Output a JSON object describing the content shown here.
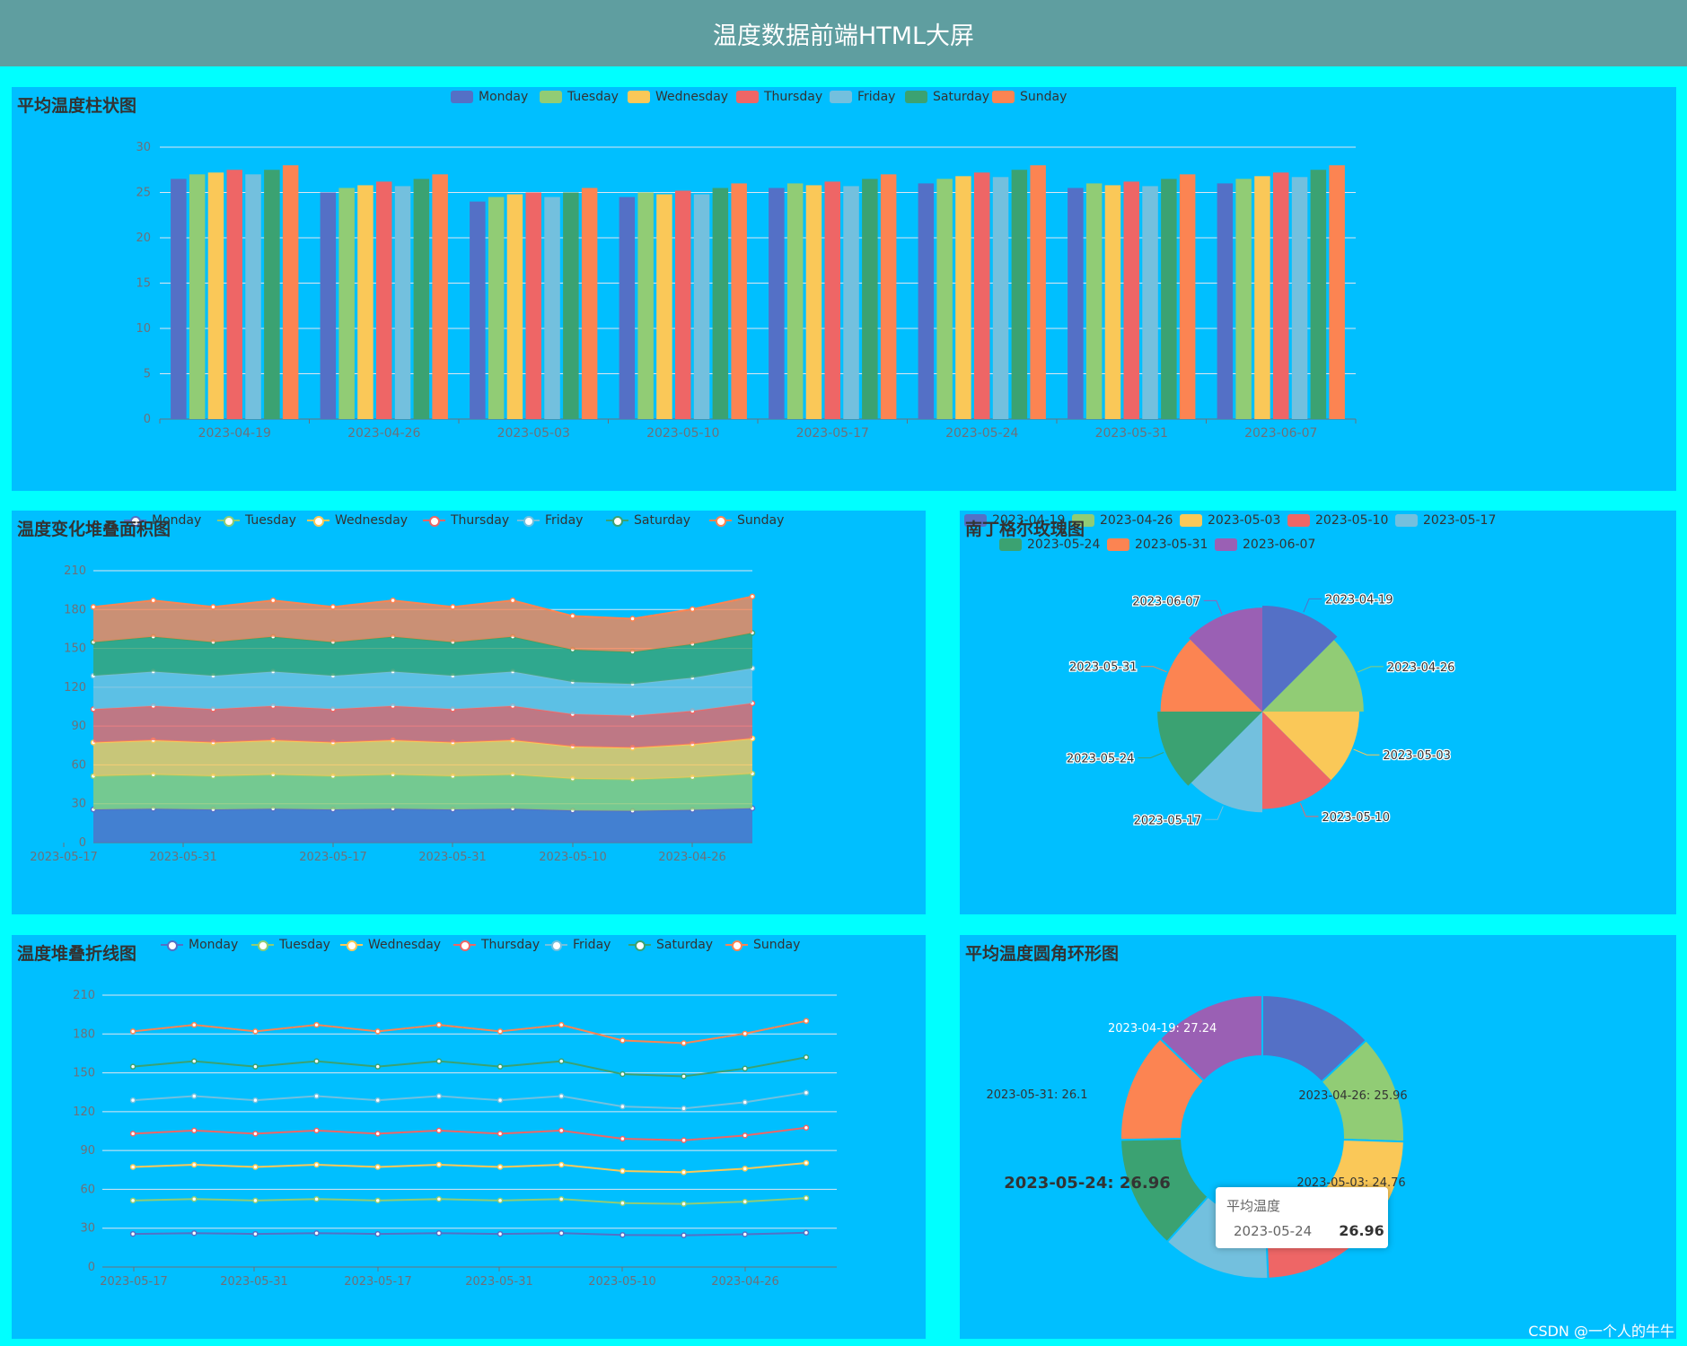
{
  "header": {
    "title": "温度数据前端HTML大屏"
  },
  "colors": [
    "#5470c6",
    "#91cc75",
    "#fac858",
    "#ee6666",
    "#73c0de",
    "#3ba272",
    "#fc8452",
    "#9a60b4"
  ],
  "panels": {
    "bar": {
      "title": "平均温度柱状图"
    },
    "area": {
      "title": "温度变化堆叠面积图"
    },
    "rose": {
      "title": "南丁格尔玫瑰图"
    },
    "line": {
      "title": "温度堆叠折线图"
    },
    "donut": {
      "title": "平均温度圆角环形图"
    }
  },
  "chart_data": [
    {
      "id": "bar",
      "type": "bar",
      "title": "平均温度柱状图",
      "categories": [
        "2023-04-19",
        "2023-04-26",
        "2023-05-03",
        "2023-05-10",
        "2023-05-17",
        "2023-05-24",
        "2023-05-31",
        "2023-06-07"
      ],
      "ylim": [
        0,
        30
      ],
      "yticks": [
        0,
        5,
        10,
        15,
        20,
        25,
        30
      ],
      "series": [
        {
          "name": "Monday",
          "values": [
            26.5,
            25.0,
            24.0,
            24.5,
            25.5,
            26.0,
            25.5,
            26.0
          ]
        },
        {
          "name": "Tuesday",
          "values": [
            27.0,
            25.5,
            24.5,
            25.0,
            26.0,
            26.5,
            26.0,
            26.5
          ]
        },
        {
          "name": "Wednesday",
          "values": [
            27.2,
            25.8,
            24.8,
            24.8,
            25.8,
            26.8,
            25.8,
            26.8
          ]
        },
        {
          "name": "Thursday",
          "values": [
            27.5,
            26.2,
            25.0,
            25.2,
            26.2,
            27.2,
            26.2,
            27.2
          ]
        },
        {
          "name": "Friday",
          "values": [
            27.0,
            25.7,
            24.5,
            24.8,
            25.7,
            26.7,
            25.7,
            26.7
          ]
        },
        {
          "name": "Saturday",
          "values": [
            27.5,
            26.5,
            25.0,
            25.5,
            26.5,
            27.5,
            26.5,
            27.5
          ]
        },
        {
          "name": "Sunday",
          "values": [
            28.0,
            27.0,
            25.5,
            26.0,
            27.0,
            28.0,
            27.0,
            28.0
          ]
        }
      ]
    },
    {
      "id": "area",
      "type": "area",
      "title": "温度变化堆叠面积图",
      "xticklabels": [
        "2023-05-17",
        "2023-05-31",
        "2023-05-17",
        "2023-05-31",
        "2023-05-10",
        "2023-04-26"
      ],
      "ylim": [
        0,
        210
      ],
      "yticks": [
        0,
        30,
        60,
        90,
        120,
        150,
        180,
        210
      ],
      "series": [
        {
          "name": "Monday",
          "values": [
            25.6,
            26.2,
            25.6,
            26.2,
            25.6,
            26.2,
            25.6,
            26.2,
            24.8,
            24.5,
            25.3,
            26.5
          ]
        },
        {
          "name": "Tuesday",
          "values": [
            25.8,
            26.3,
            25.8,
            26.3,
            25.8,
            26.3,
            25.8,
            26.3,
            24.6,
            24.3,
            25.2,
            26.8
          ]
        },
        {
          "name": "Wednesday",
          "values": [
            25.9,
            26.5,
            25.9,
            26.5,
            25.9,
            26.5,
            25.9,
            26.5,
            24.8,
            24.4,
            25.5,
            27.1
          ]
        },
        {
          "name": "Thursday",
          "values": [
            25.7,
            26.4,
            25.7,
            26.4,
            25.7,
            26.4,
            25.7,
            26.4,
            24.9,
            24.7,
            25.6,
            27.2
          ]
        },
        {
          "name": "Friday",
          "values": [
            25.8,
            26.6,
            25.8,
            26.6,
            25.8,
            26.6,
            25.8,
            26.6,
            24.9,
            24.6,
            25.7,
            27.0
          ]
        },
        {
          "name": "Saturday",
          "values": [
            26.0,
            27.0,
            26.0,
            27.0,
            26.0,
            27.0,
            26.0,
            27.0,
            25.0,
            24.8,
            26.0,
            27.4
          ]
        },
        {
          "name": "Sunday",
          "values": [
            27.2,
            28.0,
            27.2,
            28.0,
            27.2,
            28.0,
            27.2,
            28.0,
            26.0,
            25.6,
            27.0,
            28.1
          ]
        }
      ]
    },
    {
      "id": "rose",
      "type": "pie",
      "title": "南丁格尔玫瑰图",
      "categories": [
        "2023-04-19",
        "2023-04-26",
        "2023-05-03",
        "2023-05-10",
        "2023-05-17",
        "2023-05-24",
        "2023-05-31",
        "2023-06-07"
      ],
      "values": [
        27.24,
        25.96,
        24.76,
        24.9,
        25.8,
        26.96,
        26.1,
        26.7
      ]
    },
    {
      "id": "line",
      "type": "line",
      "title": "温度堆叠折线图",
      "xticklabels": [
        "2023-05-17",
        "2023-05-31",
        "2023-05-17",
        "2023-05-31",
        "2023-05-10",
        "2023-04-26"
      ],
      "ylim": [
        0,
        210
      ],
      "yticks": [
        0,
        30,
        60,
        90,
        120,
        150,
        180,
        210
      ],
      "series": [
        {
          "name": "Monday",
          "values": [
            25.6,
            26.2,
            25.6,
            26.2,
            25.6,
            26.2,
            25.6,
            26.2,
            24.8,
            24.5,
            25.3,
            26.5
          ]
        },
        {
          "name": "Tuesday",
          "values": [
            25.8,
            26.3,
            25.8,
            26.3,
            25.8,
            26.3,
            25.8,
            26.3,
            24.6,
            24.3,
            25.2,
            26.8
          ]
        },
        {
          "name": "Wednesday",
          "values": [
            25.9,
            26.5,
            25.9,
            26.5,
            25.9,
            26.5,
            25.9,
            26.5,
            24.8,
            24.4,
            25.5,
            27.1
          ]
        },
        {
          "name": "Thursday",
          "values": [
            25.7,
            26.4,
            25.7,
            26.4,
            25.7,
            26.4,
            25.7,
            26.4,
            24.9,
            24.7,
            25.6,
            27.2
          ]
        },
        {
          "name": "Friday",
          "values": [
            25.8,
            26.6,
            25.8,
            26.6,
            25.8,
            26.6,
            25.8,
            26.6,
            24.9,
            24.6,
            25.7,
            27.0
          ]
        },
        {
          "name": "Saturday",
          "values": [
            26.0,
            27.0,
            26.0,
            27.0,
            26.0,
            27.0,
            26.0,
            27.0,
            25.0,
            24.8,
            26.0,
            27.4
          ]
        },
        {
          "name": "Sunday",
          "values": [
            27.2,
            28.0,
            27.2,
            28.0,
            27.2,
            28.0,
            27.2,
            28.0,
            26.0,
            25.6,
            27.0,
            28.1
          ]
        }
      ]
    },
    {
      "id": "donut",
      "type": "pie",
      "title": "平均温度圆角环形图",
      "categories": [
        "2023-04-19",
        "2023-04-26",
        "2023-05-03",
        "2023-05-10",
        "2023-05-17",
        "2023-05-24",
        "2023-05-31",
        "2023-06-07"
      ],
      "values": [
        27.24,
        25.96,
        24.76,
        24.9,
        25.8,
        26.96,
        26.1,
        26.7
      ],
      "labels": [
        "2023-04-19: 27.24",
        "2023-04-26: 25.96",
        "2023-05-03: 24.76",
        "2023-05-31: 26.1"
      ],
      "emphasis_label": "2023-05-24: 26.96",
      "tooltip": {
        "title": "平均温度",
        "name": "2023-05-24",
        "value": "26.96"
      }
    }
  ],
  "watermark": "CSDN @一个人的牛牛"
}
